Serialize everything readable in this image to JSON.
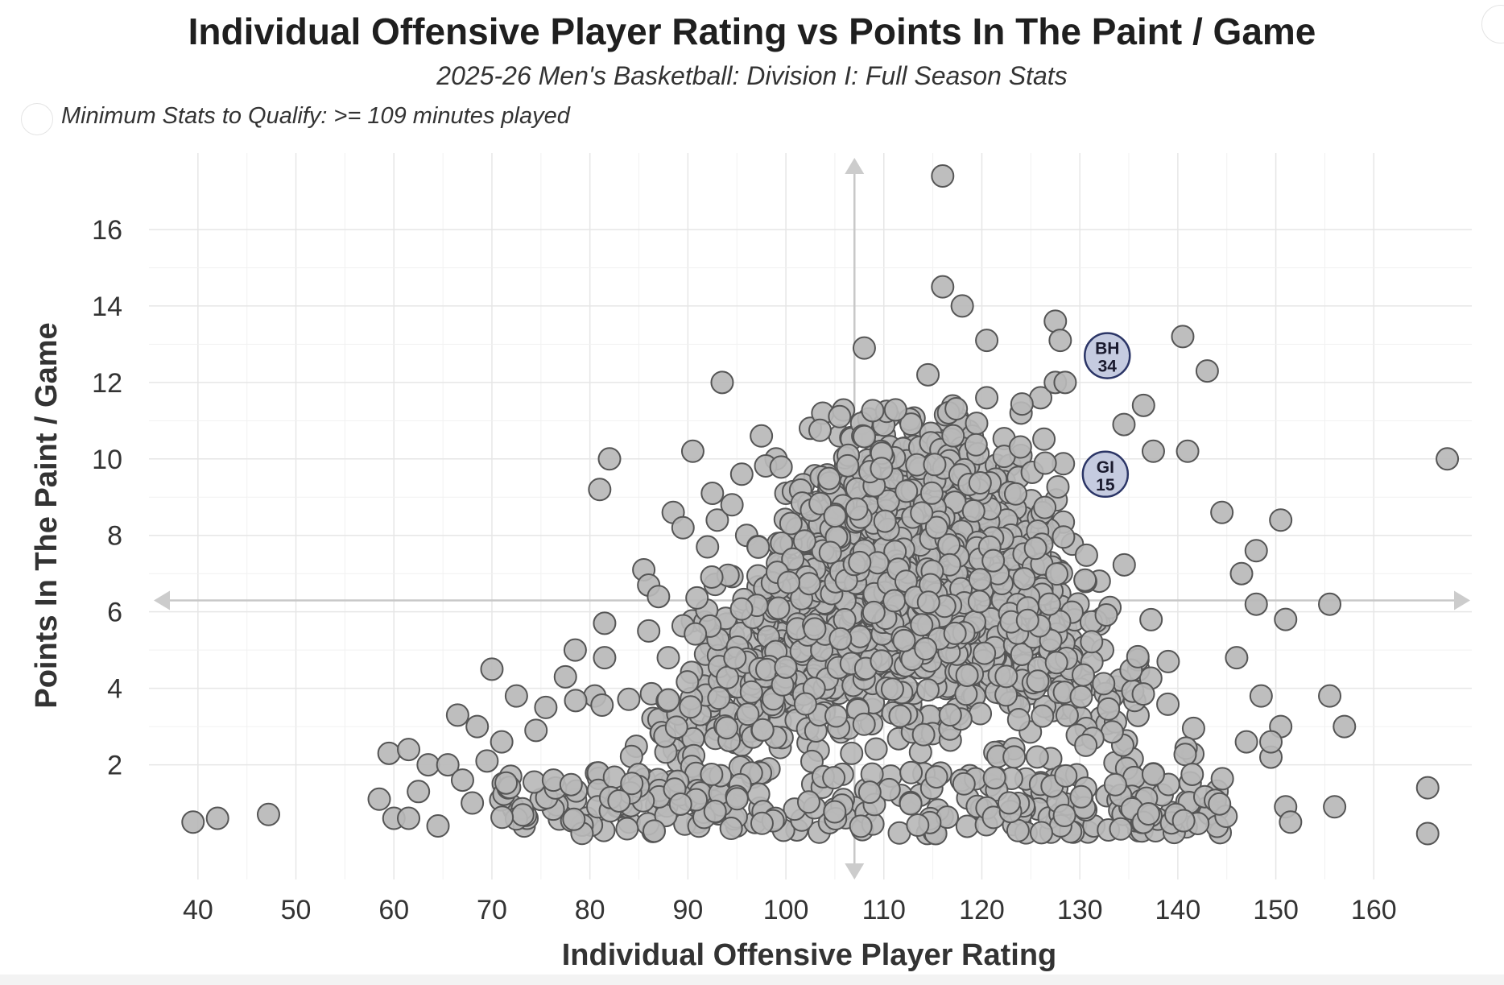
{
  "chart_data": {
    "type": "scatter",
    "title": "Individual Offensive Player Rating vs Points In The Paint / Game",
    "subtitle": "2025-26 Men's Basketball: Division I: Full Season Stats",
    "note": "Minimum Stats to Qualify: >= 109 minutes played",
    "xlabel": "Individual Offensive Player Rating",
    "ylabel": "Points In The Paint / Game",
    "xlim": [
      35,
      170
    ],
    "ylim": [
      -1,
      18
    ],
    "x_ticks": [
      40,
      50,
      60,
      70,
      80,
      90,
      100,
      110,
      120,
      130,
      140,
      150,
      160
    ],
    "y_ticks": [
      2,
      4,
      6,
      8,
      10,
      12,
      14,
      16
    ],
    "grid": true,
    "reference_lines": {
      "x": 107,
      "y": 6.3
    },
    "marker_color": "#b8b8b8",
    "marker_edge_color": "#555555",
    "highlight_color": "#c5cbe0",
    "highlight_edge_color": "#2b3566",
    "highlights": [
      {
        "label_top": "BH",
        "label_bottom": "34",
        "x": 132.8,
        "y": 12.7
      },
      {
        "label_top": "GI",
        "label_bottom": "15",
        "x": 132.6,
        "y": 9.6
      }
    ],
    "points": [
      [
        39.5,
        0.5
      ],
      [
        42,
        0.6
      ],
      [
        47.2,
        0.7
      ],
      [
        58.5,
        1.1
      ],
      [
        59.5,
        2.3
      ],
      [
        61.5,
        2.4
      ],
      [
        60,
        0.6
      ],
      [
        61.5,
        0.6
      ],
      [
        62.5,
        1.3
      ],
      [
        63.5,
        2.0
      ],
      [
        64.5,
        0.4
      ],
      [
        65.5,
        2.0
      ],
      [
        67,
        1.6
      ],
      [
        68,
        1.0
      ],
      [
        69.5,
        2.1
      ],
      [
        66.5,
        3.3
      ],
      [
        68.5,
        3.0
      ],
      [
        70,
        4.5
      ],
      [
        71,
        2.6
      ],
      [
        72.5,
        3.8
      ],
      [
        74.5,
        2.9
      ],
      [
        75.5,
        3.5
      ],
      [
        77.5,
        4.3
      ],
      [
        78.5,
        5.0
      ],
      [
        80.5,
        3.8
      ],
      [
        81.5,
        4.8
      ],
      [
        81.5,
        5.7
      ],
      [
        81,
        9.2
      ],
      [
        82,
        10.0
      ],
      [
        85.5,
        7.1
      ],
      [
        86,
        6.7
      ],
      [
        87,
        6.4
      ],
      [
        88.5,
        8.6
      ],
      [
        89.5,
        8.2
      ],
      [
        90.5,
        10.2
      ],
      [
        92,
        7.7
      ],
      [
        92.5,
        9.1
      ],
      [
        93,
        8.4
      ],
      [
        93.5,
        12.0
      ],
      [
        94.5,
        8.8
      ],
      [
        95.5,
        9.6
      ],
      [
        96,
        8.0
      ],
      [
        97.5,
        10.6
      ],
      [
        99,
        10.0
      ],
      [
        100,
        9.1
      ],
      [
        102.5,
        10.8
      ],
      [
        104.5,
        9.5
      ],
      [
        105.5,
        10.6
      ],
      [
        106,
        9.7
      ],
      [
        108,
        12.9
      ],
      [
        110.5,
        11.1
      ],
      [
        114.5,
        12.2
      ],
      [
        116,
        17.4
      ],
      [
        116,
        14.5
      ],
      [
        116.5,
        11.0
      ],
      [
        118,
        14.0
      ],
      [
        120.5,
        13.1
      ],
      [
        120.5,
        11.6
      ],
      [
        124,
        11.2
      ],
      [
        126,
        11.6
      ],
      [
        127.5,
        13.6
      ],
      [
        127.5,
        12.0
      ],
      [
        128,
        13.1
      ],
      [
        128.5,
        12.0
      ],
      [
        134.5,
        10.9
      ],
      [
        136.5,
        11.4
      ],
      [
        137.5,
        10.2
      ],
      [
        140.5,
        13.2
      ],
      [
        141,
        10.2
      ],
      [
        143,
        12.3
      ],
      [
        144.5,
        8.6
      ],
      [
        148,
        7.6
      ],
      [
        150.5,
        8.4
      ],
      [
        146.5,
        7.0
      ],
      [
        148,
        6.2
      ],
      [
        151,
        5.8
      ],
      [
        155.5,
        6.2
      ],
      [
        155.5,
        3.8
      ],
      [
        157,
        3.0
      ],
      [
        156,
        0.9
      ],
      [
        165.5,
        1.4
      ],
      [
        165.5,
        0.2
      ],
      [
        167.5,
        10.0
      ],
      [
        150.5,
        3.0
      ],
      [
        151,
        0.9
      ],
      [
        151.5,
        0.5
      ],
      [
        149.5,
        2.2
      ],
      [
        146,
        4.8
      ],
      [
        148.5,
        3.8
      ],
      [
        147,
        2.6
      ],
      [
        149.5,
        2.6
      ],
      [
        144,
        0.8
      ],
      [
        87.5,
        1.5
      ],
      [
        86,
        5.5
      ],
      [
        88,
        4.8
      ],
      [
        91,
        0.5
      ],
      [
        95,
        0.4
      ],
      [
        84,
        0.5
      ]
    ]
  }
}
